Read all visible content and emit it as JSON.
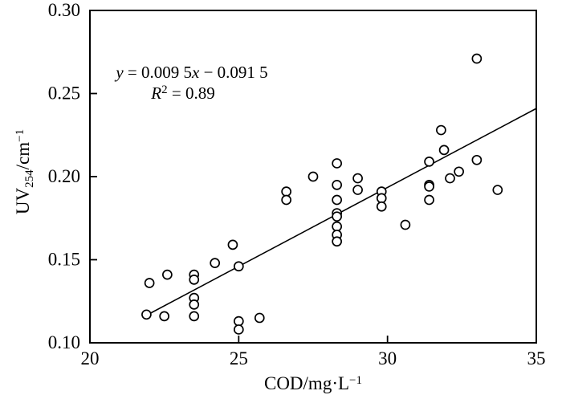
{
  "figure": {
    "x_axis_title": {
      "main": "COD/mg·L",
      "sup": "−1"
    },
    "y_axis_title": {
      "main": "UV",
      "sub": "254",
      "mid": "/cm",
      "sup": "−1"
    },
    "annotation": {
      "eq_var1": "y",
      "eq_mid": " = 0.009 5",
      "eq_var2": "x",
      "eq_tail": " − 0.091 5",
      "r2_var": "R",
      "r2_sup": "2",
      "r2_tail": " = 0.89"
    }
  },
  "chart_data": {
    "type": "scatter",
    "title": "",
    "xlabel": "COD/mg·L−1",
    "ylabel": "UV254/cm−1",
    "xlim": [
      20,
      35
    ],
    "ylim": [
      0.1,
      0.3
    ],
    "grid": false,
    "legend_position": "none",
    "marker": {
      "shape": "circle-open",
      "color": "#000000",
      "fill": "#ffffff",
      "radius_px": 5.5
    },
    "x_ticks": [
      {
        "v": 20,
        "label": "20"
      },
      {
        "v": 25,
        "label": "25"
      },
      {
        "v": 30,
        "label": "30"
      },
      {
        "v": 35,
        "label": "35"
      }
    ],
    "y_ticks": [
      {
        "v": 0.1,
        "label": "0.10"
      },
      {
        "v": 0.15,
        "label": "0.15"
      },
      {
        "v": 0.2,
        "label": "0.20"
      },
      {
        "v": 0.25,
        "label": "0.25"
      },
      {
        "v": 0.3,
        "label": "0.30"
      }
    ],
    "points": [
      [
        21.9,
        0.117
      ],
      [
        22.5,
        0.116
      ],
      [
        22.0,
        0.136
      ],
      [
        22.6,
        0.141
      ],
      [
        23.5,
        0.141
      ],
      [
        23.5,
        0.138
      ],
      [
        23.5,
        0.127
      ],
      [
        23.5,
        0.123
      ],
      [
        23.5,
        0.116
      ],
      [
        24.2,
        0.148
      ],
      [
        24.8,
        0.159
      ],
      [
        25.0,
        0.146
      ],
      [
        25.0,
        0.113
      ],
      [
        25.0,
        0.108
      ],
      [
        25.7,
        0.115
      ],
      [
        26.6,
        0.191
      ],
      [
        26.6,
        0.186
      ],
      [
        27.5,
        0.2
      ],
      [
        28.3,
        0.208
      ],
      [
        28.3,
        0.195
      ],
      [
        28.3,
        0.186
      ],
      [
        28.3,
        0.178
      ],
      [
        28.3,
        0.176
      ],
      [
        28.3,
        0.17
      ],
      [
        28.3,
        0.165
      ],
      [
        28.3,
        0.161
      ],
      [
        29.0,
        0.199
      ],
      [
        29.0,
        0.192
      ],
      [
        29.8,
        0.191
      ],
      [
        29.8,
        0.187
      ],
      [
        29.8,
        0.182
      ],
      [
        30.6,
        0.171
      ],
      [
        31.4,
        0.209
      ],
      [
        31.4,
        0.195
      ],
      [
        31.4,
        0.194
      ],
      [
        31.4,
        0.186
      ],
      [
        31.8,
        0.228
      ],
      [
        31.9,
        0.216
      ],
      [
        32.1,
        0.199
      ],
      [
        32.4,
        0.203
      ],
      [
        33.0,
        0.271
      ],
      [
        33.0,
        0.21
      ],
      [
        33.7,
        0.192
      ]
    ],
    "trendline": {
      "slope": 0.0095,
      "intercept": -0.0915,
      "x_start": 21.9,
      "x_end": 35.0,
      "equation": "y = 0.009 5x − 0.091 5",
      "r_squared": 0.89
    }
  }
}
